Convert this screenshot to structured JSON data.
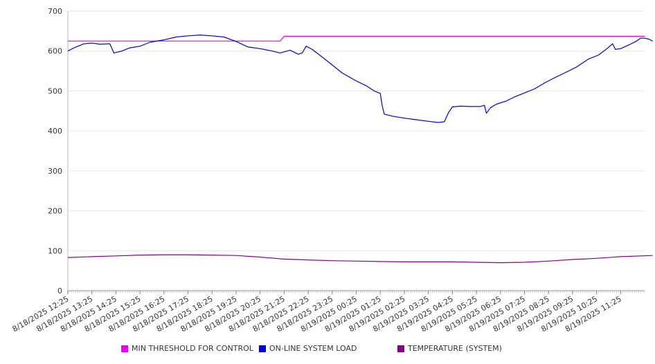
{
  "chart_data": {
    "type": "line",
    "title": "",
    "xlabel": "",
    "ylabel": "",
    "ylim": [
      0,
      700
    ],
    "y_ticks": [
      0,
      100,
      200,
      300,
      400,
      500,
      600,
      700
    ],
    "x_tick_labels": [
      "8/18/2025 12:25",
      "8/18/2025 13:25",
      "8/18/2025 14:25",
      "8/18/2025 15:25",
      "8/18/2025 16:25",
      "8/18/2025 17:25",
      "8/18/2025 18:25",
      "8/18/2025 19:25",
      "8/18/2025 20:25",
      "8/18/2025 21:25",
      "8/18/2025 22:25",
      "8/18/2025 23:25",
      "8/19/2025 00:25",
      "8/19/2025 01:25",
      "8/19/2025 02:25",
      "8/19/2025 03:25",
      "8/19/2025 04:25",
      "8/19/2025 05:25",
      "8/19/2025 06:25",
      "8/19/2025 07:25",
      "8/19/2025 08:25",
      "8/19/2025 09:25",
      "8/19/2025 10:25",
      "8/19/2025 11:25"
    ],
    "grid": true,
    "legend_position": "bottom",
    "series": [
      {
        "name": "MIN THRESHOLD FOR CONTROL",
        "color": "#ee00ee",
        "points": [
          [
            "8/18/2025 12:25",
            625
          ],
          [
            "8/18/2025 21:15",
            625
          ],
          [
            "8/18/2025 21:25",
            637
          ],
          [
            "8/19/2025 12:25",
            637
          ]
        ]
      },
      {
        "name": "ON-LINE SYSTEM LOAD",
        "color": "#0000dd",
        "points": [
          [
            "8/18/2025 12:25",
            600
          ],
          [
            "8/18/2025 12:45",
            610
          ],
          [
            "8/18/2025 13:05",
            618
          ],
          [
            "8/18/2025 13:25",
            620
          ],
          [
            "8/18/2025 13:45",
            617
          ],
          [
            "8/18/2025 14:10",
            618
          ],
          [
            "8/18/2025 14:20",
            595
          ],
          [
            "8/18/2025 14:40",
            600
          ],
          [
            "8/18/2025 15:00",
            608
          ],
          [
            "8/18/2025 15:25",
            612
          ],
          [
            "8/18/2025 15:50",
            622
          ],
          [
            "8/18/2025 16:25",
            628
          ],
          [
            "8/18/2025 16:55",
            635
          ],
          [
            "8/18/2025 17:25",
            638
          ],
          [
            "8/18/2025 17:55",
            640
          ],
          [
            "8/18/2025 18:25",
            638
          ],
          [
            "8/18/2025 18:55",
            635
          ],
          [
            "8/18/2025 19:25",
            624
          ],
          [
            "8/18/2025 19:55",
            610
          ],
          [
            "8/18/2025 20:25",
            606
          ],
          [
            "8/18/2025 20:55",
            600
          ],
          [
            "8/18/2025 21:15",
            595
          ],
          [
            "8/18/2025 21:40",
            602
          ],
          [
            "8/18/2025 22:00",
            592
          ],
          [
            "8/18/2025 22:10",
            595
          ],
          [
            "8/18/2025 22:20",
            612
          ],
          [
            "8/18/2025 22:35",
            604
          ],
          [
            "8/18/2025 23:00",
            585
          ],
          [
            "8/18/2025 23:25",
            565
          ],
          [
            "8/18/2025 23:50",
            545
          ],
          [
            "8/19/2025 00:25",
            525
          ],
          [
            "8/19/2025 00:50",
            513
          ],
          [
            "8/19/2025 01:10",
            500
          ],
          [
            "8/19/2025 01:25",
            494
          ],
          [
            "8/19/2025 01:30",
            462
          ],
          [
            "8/19/2025 01:35",
            442
          ],
          [
            "8/19/2025 01:55",
            437
          ],
          [
            "8/19/2025 02:25",
            432
          ],
          [
            "8/19/2025 02:55",
            428
          ],
          [
            "8/19/2025 03:25",
            424
          ],
          [
            "8/19/2025 03:50",
            421
          ],
          [
            "8/19/2025 04:05",
            423
          ],
          [
            "8/19/2025 04:15",
            445
          ],
          [
            "8/19/2025 04:25",
            460
          ],
          [
            "8/19/2025 04:45",
            462
          ],
          [
            "8/19/2025 05:10",
            461
          ],
          [
            "8/19/2025 05:35",
            461
          ],
          [
            "8/19/2025 05:45",
            464
          ],
          [
            "8/19/2025 05:50",
            444
          ],
          [
            "8/19/2025 06:00",
            458
          ],
          [
            "8/19/2025 06:15",
            467
          ],
          [
            "8/19/2025 06:40",
            475
          ],
          [
            "8/19/2025 07:00",
            485
          ],
          [
            "8/19/2025 07:25",
            495
          ],
          [
            "8/19/2025 07:50",
            505
          ],
          [
            "8/19/2025 08:15",
            520
          ],
          [
            "8/19/2025 08:40",
            533
          ],
          [
            "8/19/2025 09:05",
            545
          ],
          [
            "8/19/2025 09:35",
            560
          ],
          [
            "8/19/2025 10:05",
            580
          ],
          [
            "8/19/2025 10:30",
            590
          ],
          [
            "8/19/2025 10:50",
            605
          ],
          [
            "8/19/2025 11:05",
            618
          ],
          [
            "8/19/2025 11:12",
            604
          ],
          [
            "8/19/2025 11:25",
            606
          ],
          [
            "8/19/2025 11:45",
            615
          ],
          [
            "8/19/2025 12:05",
            625
          ],
          [
            "8/19/2025 12:15",
            632
          ],
          [
            "8/19/2025 12:25",
            632
          ],
          [
            "8/19/2025 12:35",
            630
          ],
          [
            "8/19/2025 12:45",
            625
          ]
        ]
      },
      {
        "name": "TEMPERATURE (SYSTEM)",
        "color": "#880088",
        "points": [
          [
            "8/18/2025 12:25",
            83
          ],
          [
            "8/18/2025 13:25",
            85
          ],
          [
            "8/18/2025 14:25",
            87
          ],
          [
            "8/18/2025 15:25",
            89
          ],
          [
            "8/18/2025 16:25",
            90
          ],
          [
            "8/18/2025 17:25",
            90
          ],
          [
            "8/18/2025 18:25",
            89
          ],
          [
            "8/18/2025 19:25",
            88
          ],
          [
            "8/18/2025 20:25",
            84
          ],
          [
            "8/18/2025 21:25",
            79
          ],
          [
            "8/18/2025 22:25",
            77
          ],
          [
            "8/18/2025 23:25",
            75
          ],
          [
            "8/19/2025 00:25",
            74
          ],
          [
            "8/19/2025 01:25",
            73
          ],
          [
            "8/19/2025 02:25",
            72
          ],
          [
            "8/19/2025 03:25",
            72
          ],
          [
            "8/19/2025 04:25",
            72
          ],
          [
            "8/19/2025 05:25",
            71
          ],
          [
            "8/19/2025 06:25",
            70
          ],
          [
            "8/19/2025 07:25",
            71
          ],
          [
            "8/19/2025 08:25",
            74
          ],
          [
            "8/19/2025 09:25",
            78
          ],
          [
            "8/19/2025 10:25",
            81
          ],
          [
            "8/19/2025 11:25",
            85
          ],
          [
            "8/19/2025 12:45",
            88
          ]
        ]
      }
    ]
  }
}
